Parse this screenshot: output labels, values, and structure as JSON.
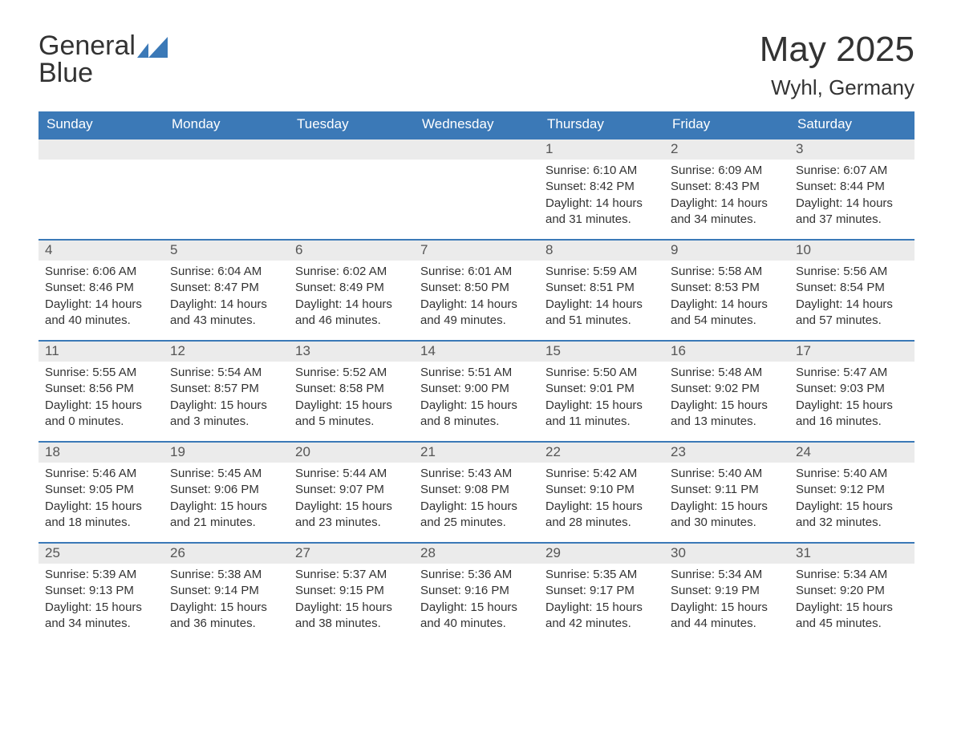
{
  "brand": {
    "word1": "General",
    "word2": "Blue"
  },
  "title": "May 2025",
  "location": "Wyhl, Germany",
  "colors": {
    "accent": "#3b79b7",
    "header_text": "#ffffff",
    "daynum_bg": "#ebebeb",
    "text": "#333333",
    "page_bg": "#ffffff"
  },
  "layout": {
    "columns": 7,
    "rows": 5,
    "font_family": "Arial, Helvetica, sans-serif",
    "title_fontsize": 44,
    "location_fontsize": 26,
    "logo_fontsize": 34,
    "weekday_fontsize": 17,
    "daynum_fontsize": 17,
    "body_fontsize": 15
  },
  "weekdays": [
    "Sunday",
    "Monday",
    "Tuesday",
    "Wednesday",
    "Thursday",
    "Friday",
    "Saturday"
  ],
  "weeks": [
    [
      {
        "empty": true
      },
      {
        "empty": true
      },
      {
        "empty": true
      },
      {
        "empty": true
      },
      {
        "n": "1",
        "sunrise": "6:10 AM",
        "sunset": "8:42 PM",
        "dl": "14 hours and 31 minutes."
      },
      {
        "n": "2",
        "sunrise": "6:09 AM",
        "sunset": "8:43 PM",
        "dl": "14 hours and 34 minutes."
      },
      {
        "n": "3",
        "sunrise": "6:07 AM",
        "sunset": "8:44 PM",
        "dl": "14 hours and 37 minutes."
      }
    ],
    [
      {
        "n": "4",
        "sunrise": "6:06 AM",
        "sunset": "8:46 PM",
        "dl": "14 hours and 40 minutes."
      },
      {
        "n": "5",
        "sunrise": "6:04 AM",
        "sunset": "8:47 PM",
        "dl": "14 hours and 43 minutes."
      },
      {
        "n": "6",
        "sunrise": "6:02 AM",
        "sunset": "8:49 PM",
        "dl": "14 hours and 46 minutes."
      },
      {
        "n": "7",
        "sunrise": "6:01 AM",
        "sunset": "8:50 PM",
        "dl": "14 hours and 49 minutes."
      },
      {
        "n": "8",
        "sunrise": "5:59 AM",
        "sunset": "8:51 PM",
        "dl": "14 hours and 51 minutes."
      },
      {
        "n": "9",
        "sunrise": "5:58 AM",
        "sunset": "8:53 PM",
        "dl": "14 hours and 54 minutes."
      },
      {
        "n": "10",
        "sunrise": "5:56 AM",
        "sunset": "8:54 PM",
        "dl": "14 hours and 57 minutes."
      }
    ],
    [
      {
        "n": "11",
        "sunrise": "5:55 AM",
        "sunset": "8:56 PM",
        "dl": "15 hours and 0 minutes."
      },
      {
        "n": "12",
        "sunrise": "5:54 AM",
        "sunset": "8:57 PM",
        "dl": "15 hours and 3 minutes."
      },
      {
        "n": "13",
        "sunrise": "5:52 AM",
        "sunset": "8:58 PM",
        "dl": "15 hours and 5 minutes."
      },
      {
        "n": "14",
        "sunrise": "5:51 AM",
        "sunset": "9:00 PM",
        "dl": "15 hours and 8 minutes."
      },
      {
        "n": "15",
        "sunrise": "5:50 AM",
        "sunset": "9:01 PM",
        "dl": "15 hours and 11 minutes."
      },
      {
        "n": "16",
        "sunrise": "5:48 AM",
        "sunset": "9:02 PM",
        "dl": "15 hours and 13 minutes."
      },
      {
        "n": "17",
        "sunrise": "5:47 AM",
        "sunset": "9:03 PM",
        "dl": "15 hours and 16 minutes."
      }
    ],
    [
      {
        "n": "18",
        "sunrise": "5:46 AM",
        "sunset": "9:05 PM",
        "dl": "15 hours and 18 minutes."
      },
      {
        "n": "19",
        "sunrise": "5:45 AM",
        "sunset": "9:06 PM",
        "dl": "15 hours and 21 minutes."
      },
      {
        "n": "20",
        "sunrise": "5:44 AM",
        "sunset": "9:07 PM",
        "dl": "15 hours and 23 minutes."
      },
      {
        "n": "21",
        "sunrise": "5:43 AM",
        "sunset": "9:08 PM",
        "dl": "15 hours and 25 minutes."
      },
      {
        "n": "22",
        "sunrise": "5:42 AM",
        "sunset": "9:10 PM",
        "dl": "15 hours and 28 minutes."
      },
      {
        "n": "23",
        "sunrise": "5:40 AM",
        "sunset": "9:11 PM",
        "dl": "15 hours and 30 minutes."
      },
      {
        "n": "24",
        "sunrise": "5:40 AM",
        "sunset": "9:12 PM",
        "dl": "15 hours and 32 minutes."
      }
    ],
    [
      {
        "n": "25",
        "sunrise": "5:39 AM",
        "sunset": "9:13 PM",
        "dl": "15 hours and 34 minutes."
      },
      {
        "n": "26",
        "sunrise": "5:38 AM",
        "sunset": "9:14 PM",
        "dl": "15 hours and 36 minutes."
      },
      {
        "n": "27",
        "sunrise": "5:37 AM",
        "sunset": "9:15 PM",
        "dl": "15 hours and 38 minutes."
      },
      {
        "n": "28",
        "sunrise": "5:36 AM",
        "sunset": "9:16 PM",
        "dl": "15 hours and 40 minutes."
      },
      {
        "n": "29",
        "sunrise": "5:35 AM",
        "sunset": "9:17 PM",
        "dl": "15 hours and 42 minutes."
      },
      {
        "n": "30",
        "sunrise": "5:34 AM",
        "sunset": "9:19 PM",
        "dl": "15 hours and 44 minutes."
      },
      {
        "n": "31",
        "sunrise": "5:34 AM",
        "sunset": "9:20 PM",
        "dl": "15 hours and 45 minutes."
      }
    ]
  ],
  "labels": {
    "sunrise_prefix": "Sunrise: ",
    "sunset_prefix": "Sunset: ",
    "daylight_prefix": "Daylight: "
  }
}
